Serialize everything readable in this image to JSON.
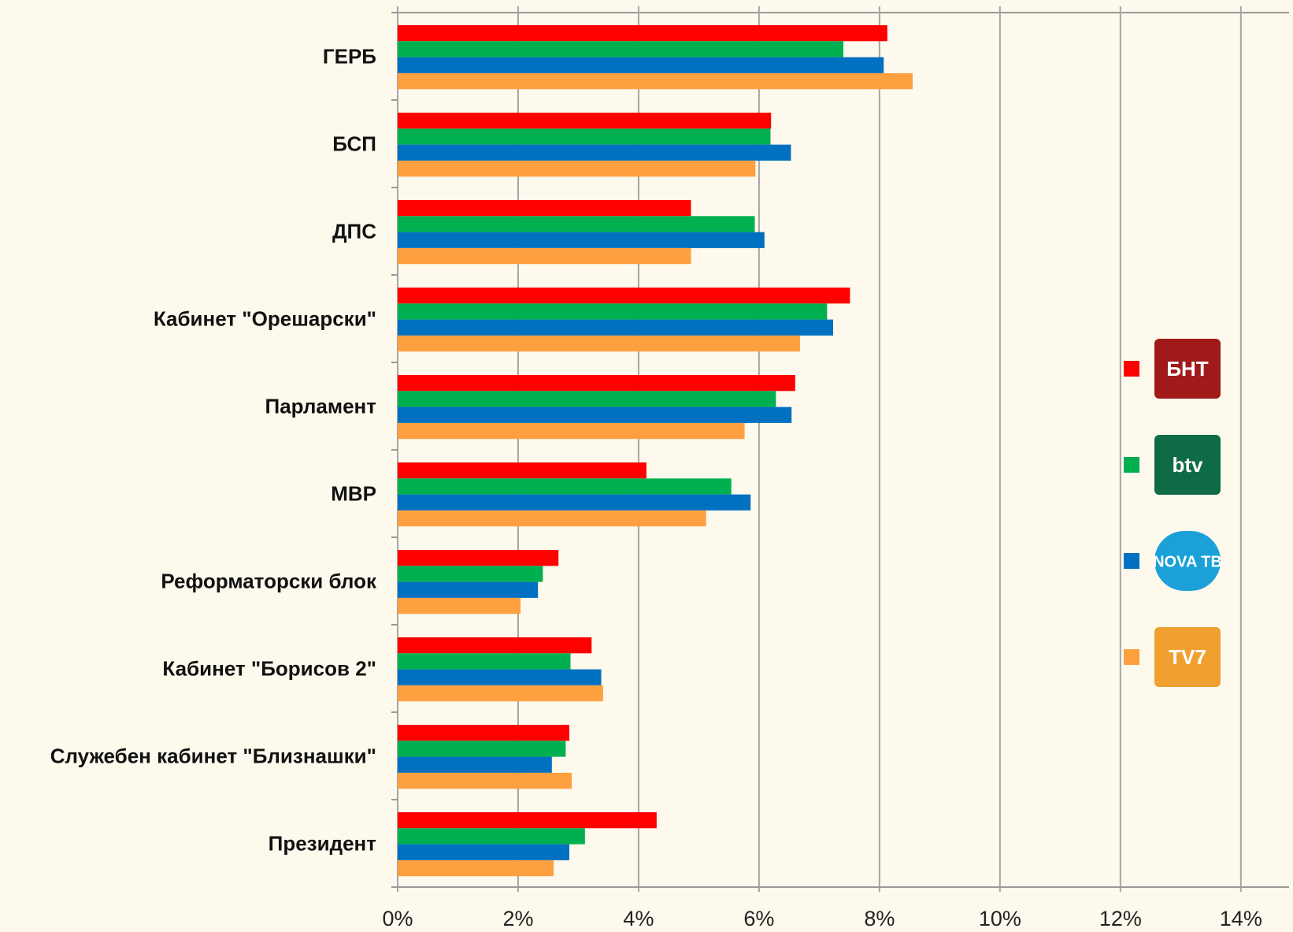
{
  "chart_data": {
    "type": "hbar",
    "categories": [
      "ГЕРБ",
      "БСП",
      "ДПС",
      "Кабинет \"Орешарски\"",
      "Парламент",
      "МВР",
      "Реформаторски блок",
      "Кабинет \"Борисов 2\"",
      "Служебен кабинет \"Близнашки\"",
      "Президент"
    ],
    "series": [
      {
        "name": "БНТ",
        "color": "#ff0000",
        "values": [
          8.13,
          6.2,
          4.87,
          7.51,
          6.6,
          4.13,
          2.67,
          3.22,
          2.85,
          4.3
        ]
      },
      {
        "name": "btv",
        "color": "#00b050",
        "values": [
          7.4,
          6.19,
          5.93,
          7.13,
          6.28,
          5.54,
          2.41,
          2.87,
          2.79,
          3.11
        ]
      },
      {
        "name": "NOVA ТВ",
        "color": "#0070c0",
        "values": [
          8.07,
          6.53,
          6.09,
          7.23,
          6.54,
          5.86,
          2.33,
          3.38,
          2.56,
          2.85
        ]
      },
      {
        "name": "TV7",
        "color": "#ffa040",
        "values": [
          8.55,
          5.94,
          4.87,
          6.68,
          5.76,
          5.12,
          2.04,
          3.41,
          2.89,
          2.59
        ]
      }
    ],
    "xlim": [
      0,
      14.8
    ],
    "xticks": [
      {
        "value": 0,
        "label": "0%"
      },
      {
        "value": 2,
        "label": "2%"
      },
      {
        "value": 4,
        "label": "4%"
      },
      {
        "value": 6,
        "label": "6%"
      },
      {
        "value": 8,
        "label": "8%"
      },
      {
        "value": 10,
        "label": "10%"
      },
      {
        "value": 12,
        "label": "12%"
      },
      {
        "value": 14,
        "label": "14%"
      }
    ],
    "grid": true,
    "legend": "right"
  }
}
